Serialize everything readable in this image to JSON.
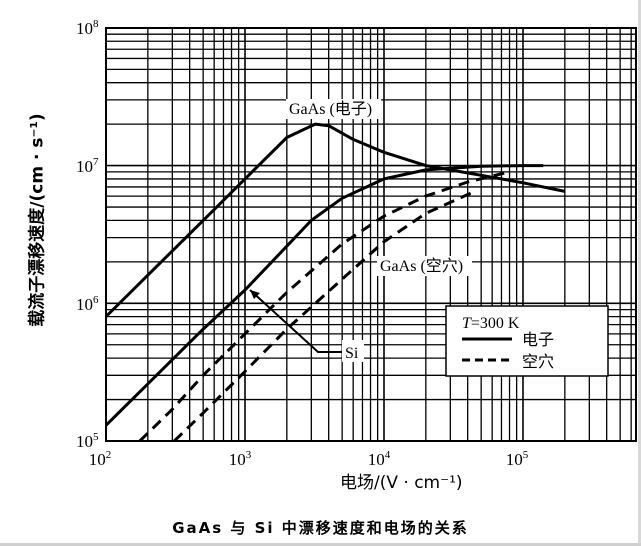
{
  "chart_data": {
    "type": "line",
    "title": "GaAs 与 Si 中漂移速度和电场的关系",
    "xlabel": "电场/(V · cm⁻¹)",
    "ylabel": "载流子漂移速度/(cm · s⁻¹)",
    "xscale": "log",
    "yscale": "log",
    "xlim": [
      100,
      700000
    ],
    "ylim": [
      100000,
      100000000
    ],
    "x_ticks": [
      "10²",
      "10³",
      "10⁴",
      "10⁵"
    ],
    "y_ticks": [
      "10⁵",
      "10⁶",
      "10⁷",
      "10⁸"
    ],
    "grid": true,
    "legend": {
      "title": "T=300 K",
      "entries": [
        {
          "label": "电子",
          "style": "solid"
        },
        {
          "label": "空穴",
          "style": "dashed"
        }
      ],
      "position": "lower right"
    },
    "series": [
      {
        "name": "GaAs (电子)",
        "style": "solid",
        "x": [
          100,
          200,
          500,
          1000,
          2000,
          3200,
          4000,
          6000,
          10000,
          20000,
          50000,
          100000,
          200000
        ],
        "y": [
          800000,
          1600000,
          4000000,
          8000000,
          16000000,
          20000000,
          19500000,
          15500000,
          12500000,
          10000000,
          8500000,
          7500000,
          6500000
        ]
      },
      {
        "name": "Si (电子)",
        "style": "solid",
        "x": [
          100,
          200,
          500,
          1000,
          2000,
          3000,
          5000,
          10000,
          20000,
          50000,
          100000,
          140000
        ],
        "y": [
          130000,
          260000,
          650000,
          1250000,
          2600000,
          4000000,
          5800000,
          8000000,
          9300000,
          9900000,
          10000000,
          10000000
        ]
      },
      {
        "name": "Si (空穴)",
        "style": "dashed",
        "x": [
          175,
          300,
          500,
          1000,
          2000,
          5000,
          10000,
          20000,
          40000,
          80000
        ],
        "y": [
          100000,
          170000,
          300000,
          600000,
          1200000,
          2700000,
          4300000,
          6000000,
          7600000,
          9000000
        ]
      },
      {
        "name": "GaAs (空穴)",
        "style": "dashed",
        "x": [
          310,
          500,
          1000,
          2000,
          5000,
          10000,
          20000,
          45000
        ],
        "y": [
          100000,
          160000,
          320000,
          650000,
          1500000,
          2800000,
          4500000,
          6500000
        ]
      }
    ],
    "annotations": [
      {
        "text": "GaAs (电子)",
        "near": "GaAs electron peak"
      },
      {
        "text": "GaAs (空穴)",
        "near": "GaAs hole curve"
      },
      {
        "text": "Si",
        "near": "arrow pointing to Si curves"
      }
    ]
  },
  "labels": {
    "ylabel": "载流子漂移速度/(cm · s⁻¹)",
    "xlabel": "电场/(V · cm⁻¹)",
    "caption": "GaAs 与 Si 中漂移速度和电场的关系",
    "legend_title": "T=300 K",
    "legend_electron": "电子",
    "legend_hole": "空穴",
    "ann_gaas_e": "GaAs (电子)",
    "ann_gaas_h": "GaAs (空穴)",
    "ann_si": "Si"
  }
}
